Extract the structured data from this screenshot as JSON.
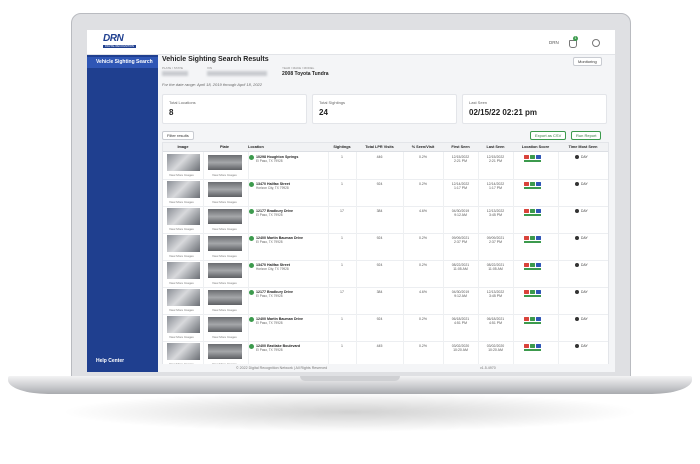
{
  "header": {
    "logo": "DRN",
    "logo_sub": "DIGITAL RECOGNITION",
    "user": "DRN",
    "badge": "1"
  },
  "sidebar": {
    "nav_item": "Vehicle Sighting Search",
    "help": "Help Center"
  },
  "page": {
    "title": "Vehicle Sighting Search Results",
    "plate_label": "PLATE / STATE",
    "vin_label": "VIN",
    "ymm_label": "YEAR / MAKE / MODEL",
    "ymm": "2008 Toyota Tundra",
    "date_range": "For the date range: April 18, 2019 through April 18, 2022",
    "monitoring": "Monitoring"
  },
  "stats": [
    {
      "label": "Total Locations",
      "value": "8"
    },
    {
      "label": "Total Sightings",
      "value": "24"
    },
    {
      "label": "Last Seen",
      "value": "02/15/22 02:21 pm"
    }
  ],
  "toolbar": {
    "filter": "Filter results",
    "export": "Export as CSV",
    "run": "Run Report"
  },
  "table": {
    "columns": [
      "Image",
      "Plate",
      "Location",
      "Sightings",
      "Total LPR Visits",
      "% Seen/Visit",
      "First Seen",
      "Last Seen",
      "Location Score",
      "Time Most Seen"
    ],
    "rows": [
      {
        "image_link": "View More Images",
        "plate_link": "View More Images",
        "address": "10298 Houghton Springs",
        "city": "El Paso, TX 79928",
        "sightings": "1",
        "visits": "446",
        "pct": "0.2%",
        "first_date": "12/15/2022",
        "first_time": "2:21 PM",
        "last_date": "12/15/2022",
        "last_time": "2:21 PM",
        "time": "DAY"
      },
      {
        "image_link": "View More Images",
        "plate_link": "View More Images",
        "address": "13470 Halifax Street",
        "city": "Horizon City, TX 79928",
        "sightings": "1",
        "visits": "924",
        "pct": "0.2%",
        "first_date": "12/14/2022",
        "first_time": "1:17 PM",
        "last_date": "12/14/2022",
        "last_time": "1:17 PM",
        "time": "DAY"
      },
      {
        "image_link": "View More Images",
        "plate_link": "View More Images",
        "address": "12177 Bradbury Drive",
        "city": "El Paso, TX 79928",
        "sightings": "17",
        "visits": "384",
        "pct": "4.6%",
        "first_date": "04/30/2019",
        "first_time": "9:12 AM",
        "last_date": "12/13/2022",
        "last_time": "3:45 PM",
        "time": "DAY"
      },
      {
        "image_link": "View More Images",
        "plate_link": "View More Images",
        "address": "12400 Martin Bauman Drive",
        "city": "El Paso, TX 79928",
        "sightings": "1",
        "visits": "924",
        "pct": "0.2%",
        "first_date": "09/09/2021",
        "first_time": "2:37 PM",
        "last_date": "09/09/2021",
        "last_time": "2:37 PM",
        "time": "DAY"
      },
      {
        "image_link": "View More Images",
        "plate_link": "View More Images",
        "address": "13470 Halifax Street",
        "city": "Horizon City, TX 79928",
        "sightings": "1",
        "visits": "924",
        "pct": "0.2%",
        "first_date": "08/22/2021",
        "first_time": "11:05 AM",
        "last_date": "08/22/2021",
        "last_time": "11:05 AM",
        "time": "DAY"
      },
      {
        "image_link": "View More Images",
        "plate_link": "View More Images",
        "address": "12177 Bradbury Drive",
        "city": "El Paso, TX 79928",
        "sightings": "17",
        "visits": "384",
        "pct": "4.6%",
        "first_date": "04/30/2019",
        "first_time": "9:12 AM",
        "last_date": "12/13/2022",
        "last_time": "3:45 PM",
        "time": "DAY"
      },
      {
        "image_link": "View More Images",
        "plate_link": "View More Images",
        "address": "12400 Martin Bauman Drive",
        "city": "El Paso, TX 79928",
        "sightings": "1",
        "visits": "924",
        "pct": "0.2%",
        "first_date": "06/18/2021",
        "first_time": "4:51 PM",
        "last_date": "06/18/2021",
        "last_time": "4:51 PM",
        "time": "DAY"
      },
      {
        "image_link": "View More Images",
        "plate_link": "View More Images",
        "address": "12400 Eastlake Boulevard",
        "city": "El Paso, TX 79928",
        "sightings": "1",
        "visits": "445",
        "pct": "0.2%",
        "first_date": "03/02/2020",
        "first_time": "10:20 AM",
        "last_date": "03/02/2020",
        "last_time": "10:20 AM",
        "time": "DAY"
      }
    ]
  },
  "footer": {
    "copyright": "© 2022 Digital Recognition Network | All Rights Reserved",
    "version": "v1.5.4970"
  }
}
